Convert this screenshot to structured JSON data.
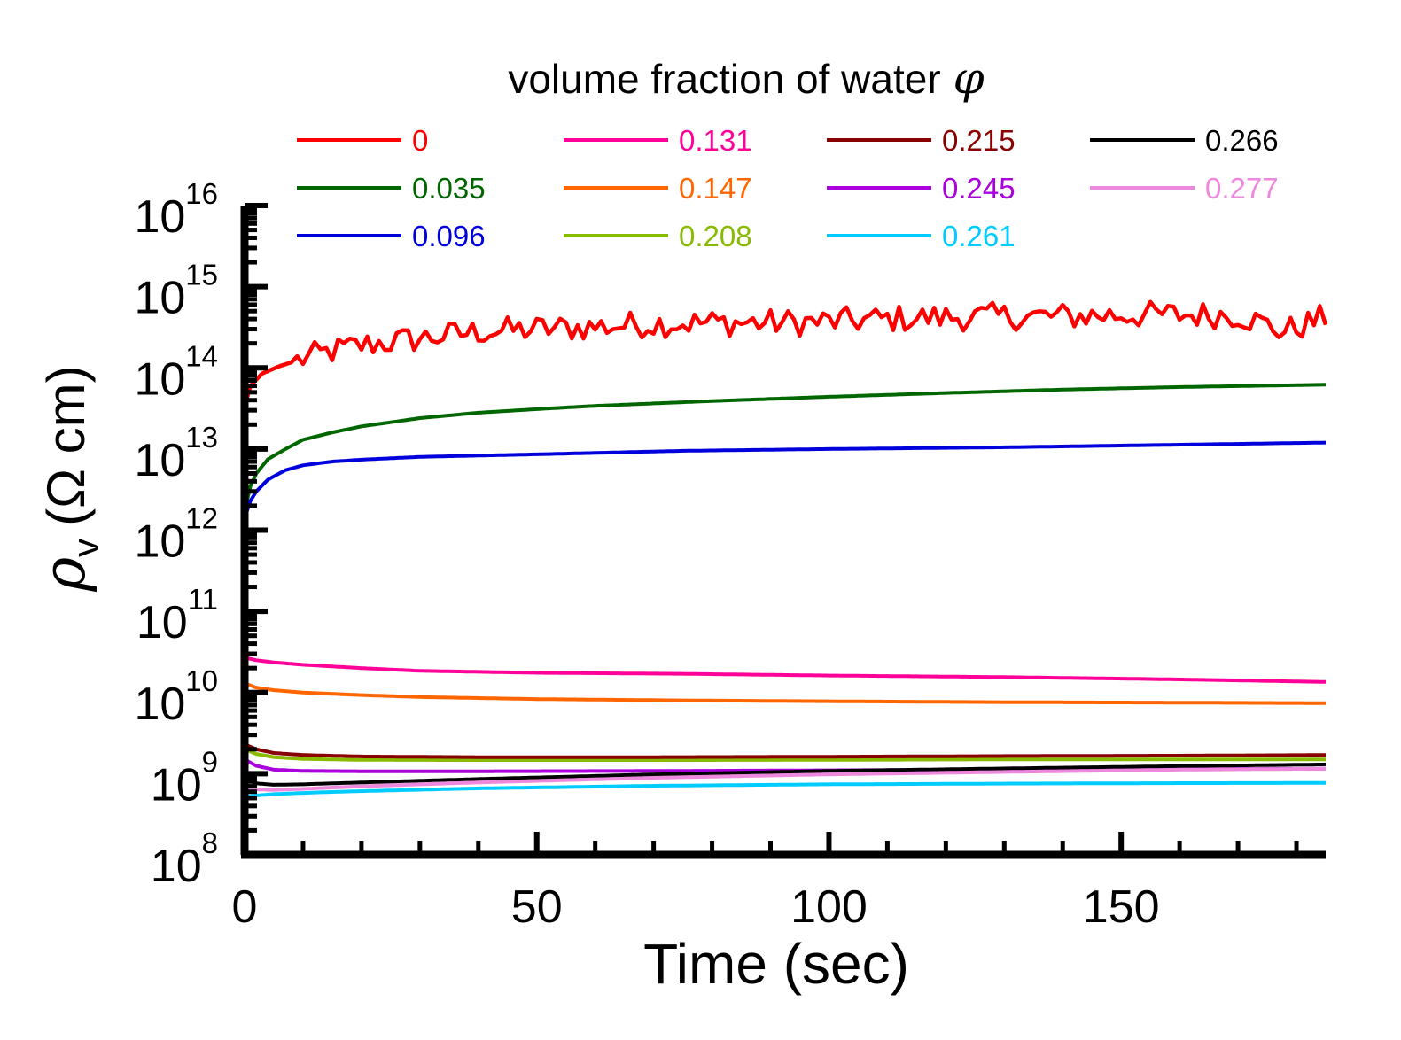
{
  "chart_data": {
    "type": "line",
    "title": "",
    "xlabel": "Time (sec)",
    "ylabel": "ρv (Ω cm)",
    "ylabel_symbol": "ρ",
    "ylabel_subscript": "v",
    "ylabel_unit": "(Ω cm)",
    "yscale": "log",
    "xlim": [
      0,
      185
    ],
    "ylim": [
      100000000.0,
      1e+16
    ],
    "xticks": [
      0,
      50,
      100,
      150
    ],
    "xtick_labels": [
      "0",
      "50",
      "100",
      "150"
    ],
    "yticks": [
      100000000.0,
      1000000000.0,
      10000000000.0,
      100000000000.0,
      1000000000000.0,
      10000000000000.0,
      100000000000000.0,
      1000000000000000.0,
      1e+16
    ],
    "ytick_base": "10",
    "ytick_exponents": [
      "8",
      "9",
      "10",
      "11",
      "12",
      "13",
      "14",
      "15",
      "16"
    ],
    "grid": false,
    "legend": {
      "title": "volume fraction of water",
      "title_symbol": "φ",
      "placement": "top",
      "columns": 4
    },
    "series": [
      {
        "name": "0",
        "color": "#ff0000",
        "noisy": true,
        "x": [
          0,
          1,
          3,
          6,
          10,
          15,
          20,
          30,
          40,
          50,
          60,
          70,
          80,
          90,
          100,
          110,
          120,
          130,
          140,
          150,
          160,
          170,
          178,
          185
        ],
        "y": [
          33000000000000.0,
          60000000000000.0,
          85000000000000.0,
          105000000000000.0,
          130000000000000.0,
          160000000000000.0,
          190000000000000.0,
          230000000000000.0,
          280000000000000.0,
          300000000000000.0,
          320000000000000.0,
          350000000000000.0,
          360000000000000.0,
          360000000000000.0,
          370000000000000.0,
          400000000000000.0,
          420000000000000.0,
          430000000000000.0,
          430000000000000.0,
          450000000000000.0,
          450000000000000.0,
          450000000000000.0,
          280000000000000.0,
          420000000000000.0
        ]
      },
      {
        "name": "0.035",
        "color": "#006600",
        "x": [
          0,
          1,
          2,
          4,
          7,
          10,
          15,
          20,
          30,
          40,
          50,
          60,
          80,
          100,
          120,
          140,
          160,
          185
        ],
        "y": [
          1700000000000.0,
          3500000000000.0,
          5000000000000.0,
          7500000000000.0,
          10000000000000.0,
          13000000000000.0,
          16000000000000.0,
          19000000000000.0,
          24000000000000.0,
          28000000000000.0,
          31000000000000.0,
          34000000000000.0,
          39000000000000.0,
          44000000000000.0,
          49000000000000.0,
          54000000000000.0,
          58000000000000.0,
          62000000000000.0
        ]
      },
      {
        "name": "0.096",
        "color": "#0000dd",
        "x": [
          0,
          1,
          2,
          4,
          7,
          10,
          15,
          20,
          30,
          50,
          75,
          100,
          130,
          160,
          185
        ],
        "y": [
          1400000000000.0,
          2300000000000.0,
          3000000000000.0,
          4200000000000.0,
          5500000000000.0,
          6300000000000.0,
          7000000000000.0,
          7400000000000.0,
          8000000000000.0,
          8600000000000.0,
          9500000000000.0,
          10000000000000.0,
          10500000000000.0,
          11300000000000.0,
          12000000000000.0
        ]
      },
      {
        "name": "0.131",
        "color": "#ff0099",
        "x": [
          0,
          2,
          5,
          10,
          20,
          30,
          50,
          75,
          100,
          130,
          160,
          185
        ],
        "y": [
          27000000000.0,
          25000000000.0,
          23500000000.0,
          22000000000.0,
          20000000000.0,
          18500000000.0,
          17500000000.0,
          17000000000.0,
          16200000000.0,
          15500000000.0,
          14500000000.0,
          13500000000.0
        ]
      },
      {
        "name": "0.147",
        "color": "#ff6600",
        "x": [
          0,
          2,
          5,
          10,
          20,
          30,
          50,
          75,
          100,
          130,
          160,
          185
        ],
        "y": [
          13000000000.0,
          11500000000.0,
          10700000000.0,
          10000000000.0,
          9300000000.0,
          8800000000.0,
          8300000000.0,
          8000000000.0,
          7800000000.0,
          7600000000.0,
          7500000000.0,
          7400000000.0
        ]
      },
      {
        "name": "0.208",
        "color": "#88bb00",
        "x": [
          0,
          2,
          5,
          10,
          20,
          40,
          70,
          100,
          130,
          160,
          185
        ],
        "y": [
          2000000000.0,
          1750000000.0,
          1600000000.0,
          1520000000.0,
          1480000000.0,
          1470000000.0,
          1470000000.0,
          1480000000.0,
          1500000000.0,
          1500000000.0,
          1500000000.0
        ]
      },
      {
        "name": "0.215",
        "color": "#880000",
        "x": [
          0,
          2,
          5,
          10,
          20,
          40,
          70,
          100,
          130,
          160,
          185
        ],
        "y": [
          2300000000.0,
          2000000000.0,
          1800000000.0,
          1700000000.0,
          1630000000.0,
          1600000000.0,
          1600000000.0,
          1620000000.0,
          1650000000.0,
          1670000000.0,
          1700000000.0
        ]
      },
      {
        "name": "0.245",
        "color": "#aa00dd",
        "x": [
          0,
          2,
          5,
          10,
          20,
          40,
          70,
          100,
          130,
          160,
          185
        ],
        "y": [
          1500000000.0,
          1250000000.0,
          1120000000.0,
          1080000000.0,
          1070000000.0,
          1070000000.0,
          1080000000.0,
          1100000000.0,
          1120000000.0,
          1140000000.0,
          1150000000.0
        ]
      },
      {
        "name": "0.261",
        "color": "#00ccff",
        "x": [
          0,
          2,
          5,
          10,
          20,
          40,
          70,
          100,
          130,
          160,
          185
        ],
        "y": [
          520000000.0,
          540000000.0,
          560000000.0,
          580000000.0,
          610000000.0,
          660000000.0,
          710000000.0,
          740000000.0,
          755000000.0,
          765000000.0,
          770000000.0
        ]
      },
      {
        "name": "0.266",
        "color": "#000000",
        "x": [
          0,
          2,
          5,
          10,
          20,
          40,
          70,
          100,
          130,
          160,
          185
        ],
        "y": [
          860000000.0,
          760000000.0,
          730000000.0,
          740000000.0,
          780000000.0,
          860000000.0,
          980000000.0,
          1080000000.0,
          1160000000.0,
          1240000000.0,
          1300000000.0
        ]
      },
      {
        "name": "0.277",
        "color": "#ee88dd",
        "x": [
          0,
          2,
          5,
          10,
          20,
          40,
          70,
          100,
          130,
          160,
          185
        ],
        "y": [
          700000000.0,
          640000000.0,
          630000000.0,
          650000000.0,
          700000000.0,
          780000000.0,
          890000000.0,
          980000000.0,
          1050000000.0,
          1120000000.0,
          1150000000.0
        ]
      }
    ]
  }
}
